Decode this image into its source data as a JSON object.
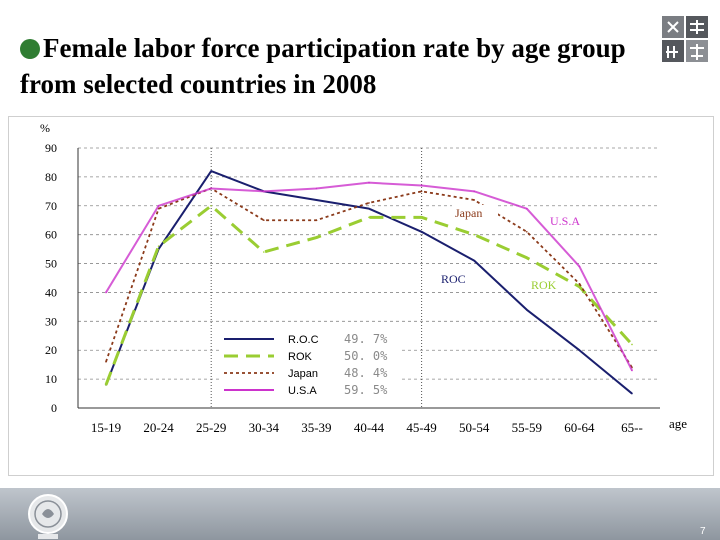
{
  "title": "Female labor force participation rate by age group from selected countries in 2008",
  "logo": {
    "icon": "gender-equality-logo-icon",
    "color": "#6b6e74"
  },
  "footer": {
    "seal_icon": "council-of-labor-affairs-seal-icon",
    "page_number": "7",
    "band_color": "#a7aeb6"
  },
  "chart_data": {
    "type": "line",
    "title": "",
    "xlabel": "age",
    "ylabel": "%",
    "ylim": [
      0,
      90
    ],
    "yticks": [
      0,
      10,
      20,
      30,
      40,
      50,
      60,
      70,
      80,
      90
    ],
    "grid": "horizontal-dashed",
    "categories": [
      "15-19",
      "20-24",
      "25-29",
      "30-34",
      "35-39",
      "40-44",
      "45-49",
      "50-54",
      "55-59",
      "60-64",
      "65--"
    ],
    "vertical_markers": [
      "25-29",
      "45-49"
    ],
    "series": [
      {
        "name": "R.O.C",
        "label": "ROC",
        "legend_value": "49. 7%",
        "color": "#1a1f6e",
        "style": "solid",
        "values": [
          8,
          55,
          82,
          75,
          72,
          69,
          61,
          51,
          34,
          20,
          5
        ]
      },
      {
        "name": "ROK",
        "label": "ROK",
        "legend_value": "50. 0%",
        "color": "#9acd32",
        "style": "dashed",
        "values": [
          8,
          56,
          70,
          54,
          59,
          66,
          66,
          60,
          52,
          42,
          22
        ]
      },
      {
        "name": "Japan",
        "label": "Japan",
        "legend_value": "48. 4%",
        "color": "#8b3a1a",
        "style": "dotted",
        "values": [
          16,
          69,
          76,
          65,
          65,
          71,
          75,
          72,
          61,
          43,
          14
        ]
      },
      {
        "name": "U.S.A",
        "label": "U.S.A",
        "legend_value": "59. 5%",
        "color": "#cc33cc",
        "style": "solid-light",
        "values": [
          40,
          70,
          76,
          75,
          76,
          78,
          77,
          75,
          69,
          49,
          13
        ]
      }
    ],
    "legend_position": "bottom-left-inside"
  }
}
